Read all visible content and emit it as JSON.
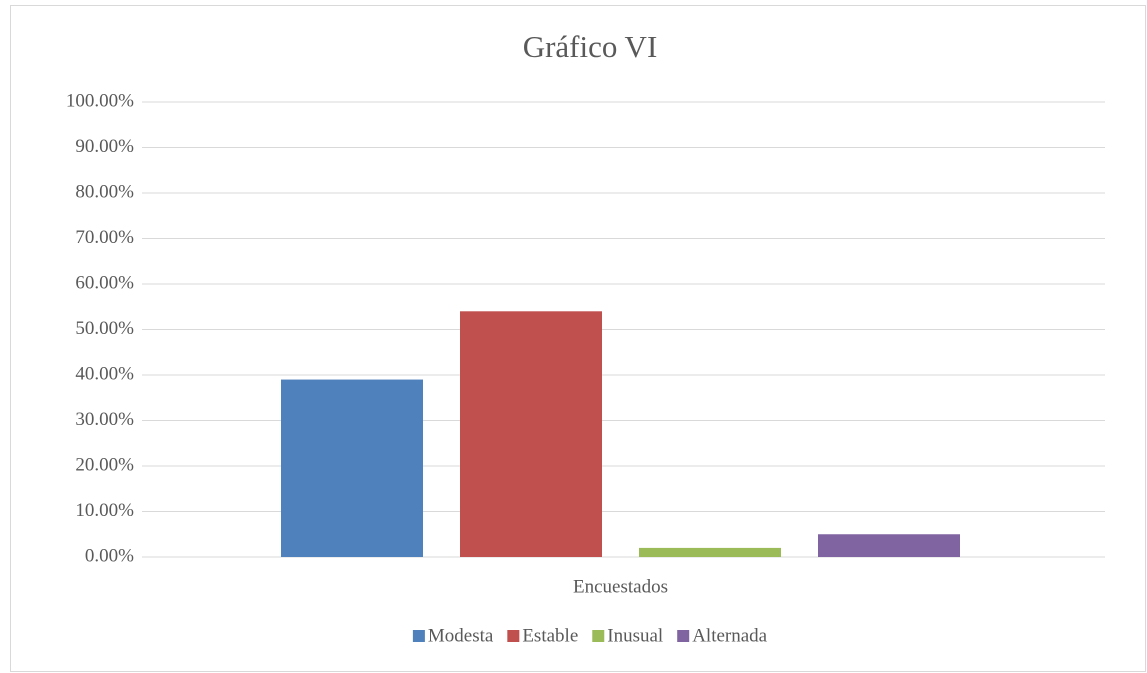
{
  "chart_data": {
    "type": "bar",
    "title": "Gráfico VI",
    "categories": [
      "Encuestados"
    ],
    "series": [
      {
        "name": "Modesta",
        "color": "#4f81bd",
        "values": [
          39
        ]
      },
      {
        "name": "Estable",
        "color": "#c0504d",
        "values": [
          54
        ]
      },
      {
        "name": "Inusual",
        "color": "#9bbb59",
        "values": [
          2
        ]
      },
      {
        "name": "Alternada",
        "color": "#8064a2",
        "values": [
          5
        ]
      }
    ],
    "ylim": [
      0,
      100
    ],
    "yticks": [
      {
        "value": 0,
        "label": "0.00%"
      },
      {
        "value": 10,
        "label": "10.00%"
      },
      {
        "value": 20,
        "label": "20.00%"
      },
      {
        "value": 30,
        "label": "30.00%"
      },
      {
        "value": 40,
        "label": "40.00%"
      },
      {
        "value": 50,
        "label": "50.00%"
      },
      {
        "value": 60,
        "label": "60.00%"
      },
      {
        "value": 70,
        "label": "70.00%"
      },
      {
        "value": 80,
        "label": "80.00%"
      },
      {
        "value": 90,
        "label": "90.00%"
      },
      {
        "value": 100,
        "label": "100.00%"
      }
    ],
    "grid": true,
    "legend": "bottom"
  }
}
